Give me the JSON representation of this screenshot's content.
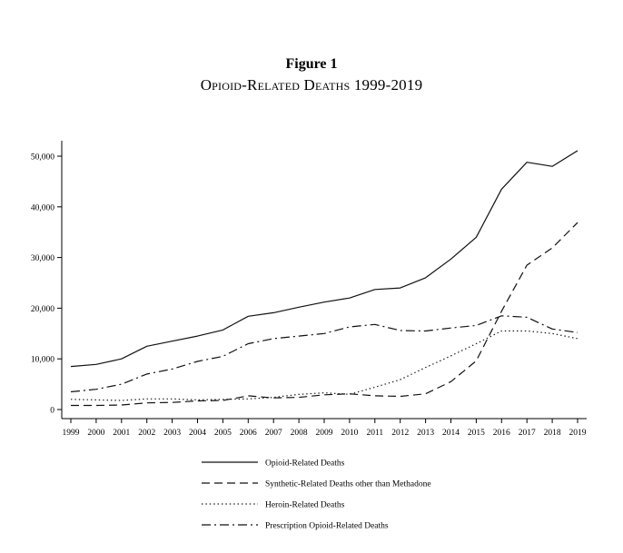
{
  "figure": {
    "label": "Figure 1",
    "title": "Opioid-Related Deaths 1999-2019"
  },
  "chart_data": {
    "type": "line",
    "title": "Opioid-Related Deaths 1999-2019",
    "xlabel": "",
    "ylabel": "",
    "x": [
      1999,
      2000,
      2001,
      2002,
      2003,
      2004,
      2005,
      2006,
      2007,
      2008,
      2009,
      2010,
      2011,
      2012,
      2013,
      2014,
      2015,
      2016,
      2017,
      2018,
      2019
    ],
    "x_tick_labels": [
      "1999",
      "2000",
      "2001",
      "2002",
      "2003",
      "2004",
      "2005",
      "2006",
      "2007",
      "2008",
      "2009",
      "2010",
      "2011",
      "2012",
      "2013",
      "2014",
      "2015",
      "2016",
      "2017",
      "2018",
      "2019"
    ],
    "ylim": [
      0,
      52000
    ],
    "y_ticks": [
      0,
      10000,
      20000,
      30000,
      40000,
      50000
    ],
    "y_tick_labels": [
      "0",
      "10,000",
      "20,000",
      "30,000",
      "40,000",
      "50,000"
    ],
    "grid": false,
    "legend_position": "bottom",
    "series": [
      {
        "name": "Opioid-Related Deaths",
        "dash": "solid",
        "values": [
          8500,
          8900,
          10000,
          12500,
          13500,
          14500,
          15700,
          18400,
          19100,
          20200,
          21200,
          22000,
          23700,
          24000,
          26000,
          29700,
          34000,
          43500,
          48800,
          48000,
          51100
        ]
      },
      {
        "name": "Synthetic-Related Deaths other than Methadone",
        "dash": "dashed",
        "values": [
          800,
          800,
          900,
          1300,
          1400,
          1700,
          1800,
          2700,
          2300,
          2400,
          2900,
          3100,
          2700,
          2600,
          3100,
          5500,
          9600,
          19400,
          28500,
          31900,
          36900
        ]
      },
      {
        "name": "Heroin-Related Deaths",
        "dash": "dotted",
        "values": [
          2000,
          1900,
          1800,
          2100,
          2100,
          1900,
          2000,
          2100,
          2400,
          3000,
          3300,
          3000,
          4400,
          5900,
          8300,
          10600,
          13000,
          15500,
          15500,
          15000,
          14000
        ]
      },
      {
        "name": "Prescription Opioid-Related Deaths",
        "dash": "dashdot",
        "values": [
          3500,
          4000,
          5000,
          7000,
          8000,
          9500,
          10500,
          13000,
          14000,
          14500,
          15000,
          16300,
          16800,
          15600,
          15500,
          16100,
          16600,
          18500,
          18200,
          15900,
          15200
        ]
      }
    ]
  }
}
